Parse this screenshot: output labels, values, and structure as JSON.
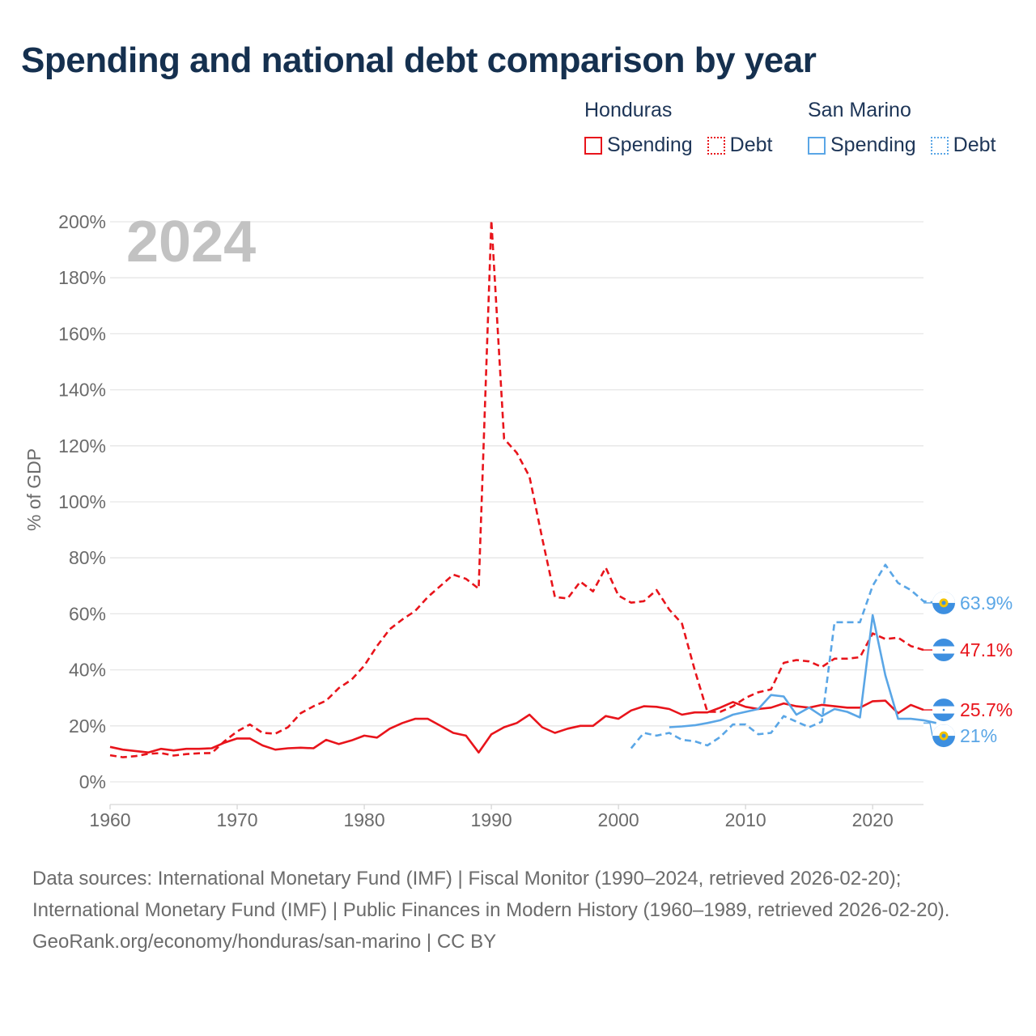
{
  "title": "Spending and national debt comparison by year",
  "legend": {
    "groups": [
      {
        "country": "Honduras",
        "spending_label": "Spending",
        "debt_label": "Debt"
      },
      {
        "country": "San Marino",
        "spending_label": "Spending",
        "debt_label": "Debt"
      }
    ]
  },
  "colors": {
    "honduras": "#e8141b",
    "san_marino": "#5aa6e6",
    "grid": "#e6e6e6",
    "axis_text": "#6b6b6b",
    "year_watermark": "#c2c2c2"
  },
  "footer": {
    "sources": "Data sources: International Monetary Fund (IMF) | Fiscal Monitor (1990–2024, retrieved 2026-02-20); International Monetary Fund (IMF) | Public Finances in Modern History (1960–1989, retrieved 2026-02-20).",
    "credit": "GeoRank.org/economy/honduras/san-marino | CC BY"
  },
  "chart_data": {
    "type": "line",
    "current_year_label": "2024",
    "ylabel": "% of GDP",
    "xlabel": "",
    "xlim": [
      1960,
      2024
    ],
    "ylim": [
      0,
      200
    ],
    "x_ticks": [
      1960,
      1970,
      1980,
      1990,
      2000,
      2010,
      2020
    ],
    "y_ticks": [
      0,
      20,
      40,
      60,
      80,
      100,
      120,
      140,
      160,
      180,
      200
    ],
    "y_tick_labels": [
      "0%",
      "20%",
      "40%",
      "60%",
      "80%",
      "100%",
      "120%",
      "140%",
      "160%",
      "180%",
      "200%"
    ],
    "grid": true,
    "series": [
      {
        "name": "Honduras Debt",
        "country": "Honduras",
        "metric": "Debt",
        "style": "dashed",
        "color": "#e8141b",
        "end_label": "47.1%",
        "start_year": 1960,
        "values": [
          9.5,
          8.8,
          9.2,
          10,
          10.3,
          9.4,
          9.9,
          10.2,
          10.3,
          14.5,
          18,
          20.5,
          17.5,
          17.2,
          19.5,
          24.5,
          27,
          29,
          33.5,
          36.5,
          41.5,
          48.5,
          54.5,
          58,
          61,
          66,
          70,
          74,
          72.5,
          69,
          200.5,
          122.5,
          117.5,
          109,
          87,
          66,
          65.5,
          71.5,
          68,
          76.5,
          66.5,
          64,
          64.5,
          68.5,
          61.5,
          56.5,
          40,
          25,
          25,
          27,
          30,
          32,
          33,
          42.5,
          43.5,
          43,
          41,
          44,
          44,
          44.5,
          53,
          51,
          51.5,
          48.5,
          47.1
        ]
      },
      {
        "name": "Honduras Spending",
        "country": "Honduras",
        "metric": "Spending",
        "style": "solid",
        "color": "#e8141b",
        "end_label": "25.7%",
        "start_year": 1960,
        "values": [
          12.5,
          11.5,
          11,
          10.5,
          11.8,
          11.2,
          11.8,
          11.8,
          12,
          14,
          15.5,
          15.5,
          13,
          11.5,
          12,
          12.2,
          12,
          15,
          13.5,
          14.8,
          16.5,
          15.8,
          19,
          21,
          22.5,
          22.5,
          20,
          17.5,
          16.5,
          10.5,
          17,
          19.5,
          21,
          24,
          19.5,
          17.5,
          19,
          20,
          20,
          23.5,
          22.5,
          25.5,
          27,
          26.8,
          26,
          24,
          24.8,
          24.8,
          26.5,
          28.5,
          26.8,
          26,
          26.5,
          28,
          27,
          26.5,
          27.5,
          27,
          26.5,
          26.5,
          28.8,
          29,
          24.5,
          27.5,
          25.7
        ]
      },
      {
        "name": "San Marino Debt",
        "country": "San Marino",
        "metric": "Debt",
        "style": "dashed",
        "color": "#5aa6e6",
        "end_label": "63.9%",
        "start_year": 2001,
        "values": [
          12,
          17.5,
          16.5,
          17.5,
          15,
          14.5,
          13,
          16,
          20.5,
          20.5,
          17,
          17.5,
          23.5,
          21.5,
          19.5,
          21.5,
          57,
          57,
          57,
          70,
          77.5,
          71,
          68.5,
          64.5,
          63.9
        ]
      },
      {
        "name": "San Marino Spending",
        "country": "San Marino",
        "metric": "Spending",
        "style": "solid",
        "color": "#5aa6e6",
        "end_label": "21%",
        "start_year": 2004,
        "values": [
          19.5,
          19.8,
          20.2,
          21,
          22,
          24,
          25,
          26,
          31,
          30.5,
          24,
          26.5,
          23.5,
          26,
          25,
          23,
          59.5,
          38,
          22.5,
          22.5,
          22,
          21
        ]
      }
    ]
  }
}
